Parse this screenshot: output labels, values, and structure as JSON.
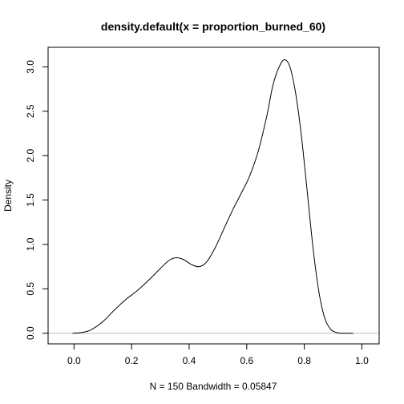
{
  "chart_data": {
    "type": "line",
    "title": "density.default(x = proportion_burned_60)",
    "xlabel": "N = 150   Bandwidth = 0.05847",
    "ylabel": "Density",
    "xlim": [
      -0.09,
      1.06
    ],
    "ylim": [
      -0.12,
      3.22
    ],
    "x_ticks": [
      0.0,
      0.2,
      0.4,
      0.6,
      0.8,
      1.0
    ],
    "x_tick_labels": [
      "0.0",
      "0.2",
      "0.4",
      "0.6",
      "0.8",
      "1.0"
    ],
    "y_ticks": [
      0.0,
      0.5,
      1.0,
      1.5,
      2.0,
      2.5,
      3.0
    ],
    "y_tick_labels": [
      "0.0",
      "0.5",
      "1.0",
      "1.5",
      "2.0",
      "2.5",
      "3.0"
    ],
    "zero_line": true,
    "grid": false,
    "series": [
      {
        "color": "#000000",
        "x": [
          -0.005,
          0.03,
          0.06,
          0.1,
          0.14,
          0.18,
          0.22,
          0.26,
          0.3,
          0.33,
          0.355,
          0.38,
          0.41,
          0.435,
          0.46,
          0.49,
          0.52,
          0.55,
          0.58,
          0.61,
          0.64,
          0.67,
          0.69,
          0.71,
          0.73,
          0.75,
          0.77,
          0.79,
          0.81,
          0.83,
          0.85,
          0.87,
          0.89,
          0.91,
          0.93,
          0.95,
          0.97
        ],
        "y": [
          0.0,
          0.01,
          0.04,
          0.13,
          0.26,
          0.38,
          0.48,
          0.6,
          0.73,
          0.82,
          0.85,
          0.83,
          0.77,
          0.75,
          0.8,
          0.96,
          1.17,
          1.38,
          1.57,
          1.77,
          2.05,
          2.45,
          2.78,
          2.98,
          3.08,
          3.0,
          2.7,
          2.22,
          1.6,
          0.97,
          0.48,
          0.18,
          0.05,
          0.01,
          0.0,
          0.0,
          0.0
        ]
      }
    ]
  }
}
